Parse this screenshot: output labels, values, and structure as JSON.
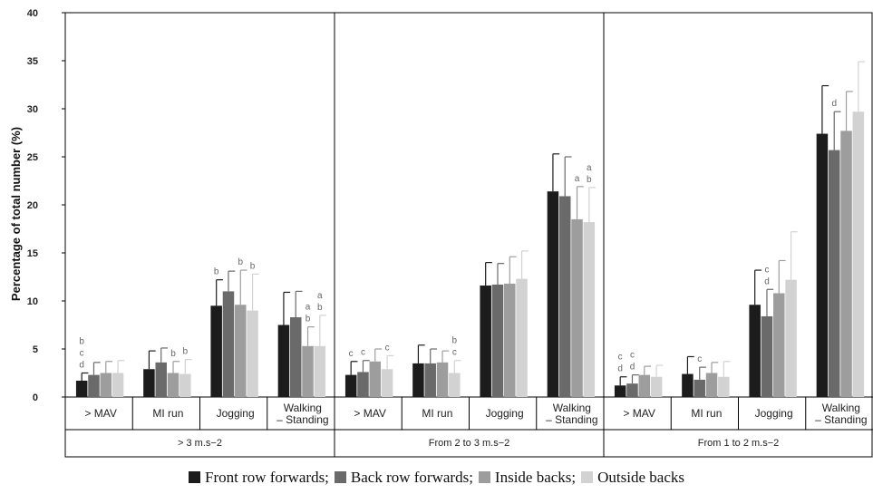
{
  "chart_data": {
    "type": "bar",
    "ylabel": "Percentage of total number (%)",
    "ylim": [
      0,
      40
    ],
    "yticks": [
      0,
      5,
      10,
      15,
      20,
      25,
      30,
      35,
      40
    ],
    "grid": false,
    "legend_position": "bottom",
    "series": [
      {
        "name": "Front row forwards;",
        "color": "#1c1c1c"
      },
      {
        "name": "Back row forwards;",
        "color": "#6a6a6a"
      },
      {
        "name": "Inside backs;",
        "color": "#9d9d9d"
      },
      {
        "name": "Outside backs",
        "color": "#d2d2d2"
      }
    ],
    "groups": [
      {
        "label": "> 3 m.s−2",
        "categories": [
          {
            "label": "> MAV",
            "values": [
              1.7,
              2.3,
              2.5,
              2.5
            ],
            "errors": [
              0.8,
              1.3,
              1.2,
              1.3
            ],
            "annotations": [
              [
                "b",
                "c",
                "d"
              ],
              [],
              [],
              []
            ]
          },
          {
            "label": "MI run",
            "values": [
              2.9,
              3.6,
              2.5,
              2.4
            ],
            "errors": [
              1.9,
              1.5,
              1.2,
              1.5
            ],
            "annotations": [
              [],
              [],
              [
                "b"
              ],
              [
                "b"
              ]
            ]
          },
          {
            "label": "Jogging",
            "values": [
              9.5,
              11.0,
              9.6,
              9.0
            ],
            "errors": [
              2.7,
              2.1,
              3.6,
              3.8
            ],
            "annotations": [
              [
                "b"
              ],
              [],
              [
                "b"
              ],
              [
                "b"
              ]
            ]
          },
          {
            "label": "Walking\n– Standing",
            "values": [
              7.5,
              8.3,
              5.3,
              5.3
            ],
            "errors": [
              3.4,
              2.7,
              2.0,
              3.2
            ],
            "annotations": [
              [],
              [],
              [
                "a",
                "b"
              ],
              [
                "a",
                "b"
              ]
            ]
          }
        ]
      },
      {
        "label": "From 2 to 3 m.s−2",
        "categories": [
          {
            "label": "> MAV",
            "values": [
              2.3,
              2.6,
              3.7,
              2.9
            ],
            "errors": [
              1.4,
              1.2,
              1.3,
              1.4
            ],
            "annotations": [
              [
                "c"
              ],
              [
                "c"
              ],
              [],
              [
                "c"
              ]
            ]
          },
          {
            "label": "MI run",
            "values": [
              3.5,
              3.5,
              3.6,
              2.5
            ],
            "errors": [
              1.9,
              1.5,
              1.2,
              1.3
            ],
            "annotations": [
              [],
              [],
              [],
              [
                "b",
                "c"
              ]
            ]
          },
          {
            "label": "Jogging",
            "values": [
              11.6,
              11.7,
              11.8,
              12.3
            ],
            "errors": [
              2.4,
              2.2,
              2.8,
              2.9
            ],
            "annotations": [
              [],
              [],
              [],
              []
            ]
          },
          {
            "label": "Walking\n– Standing",
            "values": [
              21.4,
              20.9,
              18.5,
              18.2
            ],
            "errors": [
              3.9,
              4.1,
              3.4,
              3.6
            ],
            "annotations": [
              [],
              [],
              [
                "a"
              ],
              [
                "a",
                "b"
              ]
            ]
          }
        ]
      },
      {
        "label": "From 1 to 2 m.s−2",
        "categories": [
          {
            "label": "> MAV",
            "values": [
              1.2,
              1.4,
              2.3,
              2.1
            ],
            "errors": [
              0.9,
              0.9,
              0.9,
              1.2
            ],
            "annotations": [
              [
                "c",
                "d"
              ],
              [
                "c",
                "d"
              ],
              [],
              []
            ]
          },
          {
            "label": "MI run",
            "values": [
              2.4,
              1.8,
              2.5,
              2.1
            ],
            "errors": [
              1.8,
              1.3,
              1.1,
              1.6
            ],
            "annotations": [
              [],
              [
                "c"
              ],
              [],
              []
            ]
          },
          {
            "label": "Jogging",
            "values": [
              9.6,
              8.4,
              10.8,
              12.2
            ],
            "errors": [
              3.6,
              2.8,
              3.4,
              5.0
            ],
            "annotations": [
              [],
              [
                "c",
                "d"
              ],
              [],
              []
            ]
          },
          {
            "label": "Walking\n– Standing",
            "values": [
              27.4,
              25.7,
              27.7,
              29.7
            ],
            "errors": [
              5.0,
              4.0,
              4.1,
              5.2
            ],
            "annotations": [
              [],
              [
                "d"
              ],
              [],
              []
            ]
          }
        ]
      }
    ]
  }
}
